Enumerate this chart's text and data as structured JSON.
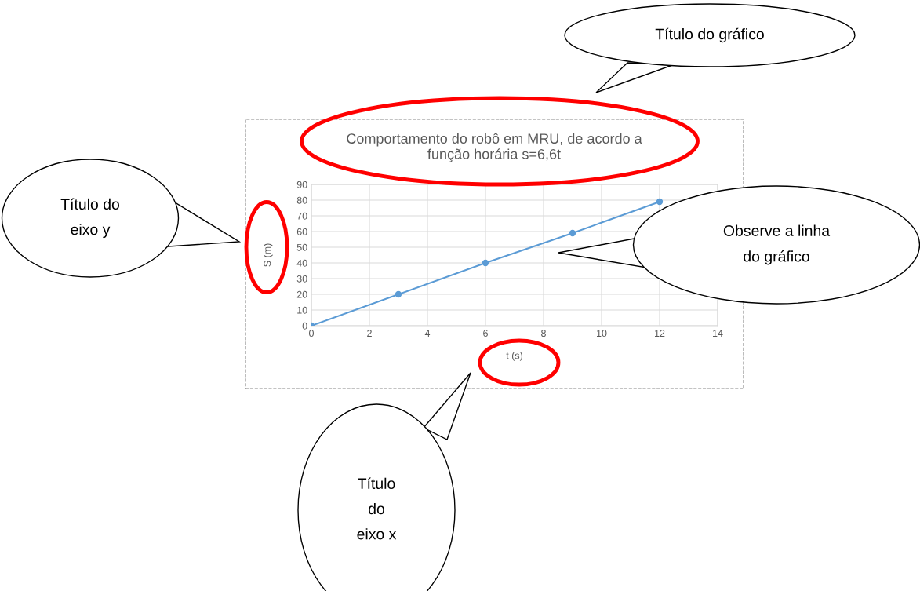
{
  "chart_data": {
    "type": "line",
    "title": "Comportamento do robô em MRU, de acordo a\nfunção horária s=6,6t",
    "xlabel": "t (s)",
    "ylabel": "S (m)",
    "x": [
      0,
      3,
      6,
      9,
      12
    ],
    "series": [
      {
        "color": "#5b9bd5",
        "values": [
          0,
          20,
          40,
          59,
          79
        ]
      }
    ],
    "xlim": [
      0,
      14
    ],
    "xticks": [
      0,
      2,
      4,
      6,
      8,
      10,
      12,
      14
    ],
    "ylim": [
      0,
      90
    ],
    "yticks": [
      0,
      10,
      20,
      30,
      40,
      50,
      60,
      70,
      80,
      90
    ],
    "grid": true,
    "marker": "circle",
    "line_style": "solid",
    "annotations": [
      "Título do gráfico",
      "Título do\neixo y",
      "Observe a linha\ndo gráfico",
      "Título\ndo\neixo x"
    ]
  }
}
